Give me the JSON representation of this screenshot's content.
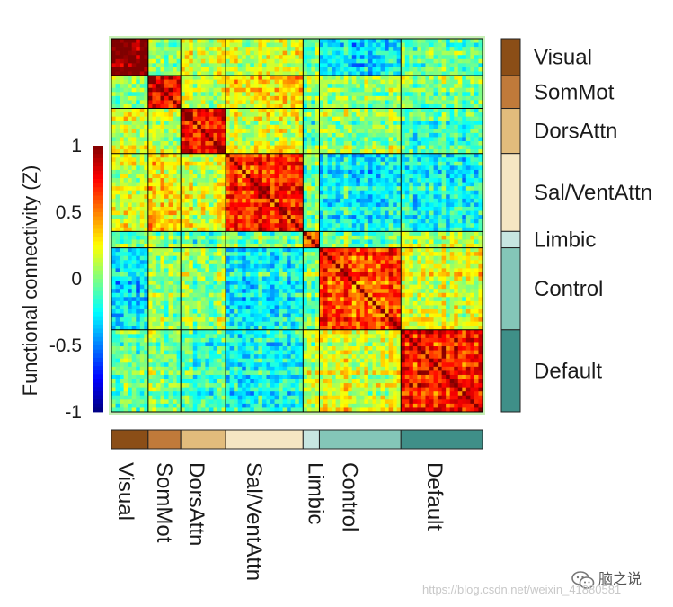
{
  "chart_data": {
    "type": "heatmap",
    "title": "",
    "colorbar": {
      "label": "Functional connectivity (Z)",
      "ticks": [
        {
          "value": 1,
          "label": "1"
        },
        {
          "value": 0.5,
          "label": "0.5"
        },
        {
          "value": 0,
          "label": "0"
        },
        {
          "value": -0.5,
          "label": "-0.5"
        },
        {
          "value": -1,
          "label": "-1"
        }
      ],
      "range": [
        -1,
        1
      ],
      "colormap": "jet"
    },
    "networks": [
      {
        "name": "Visual",
        "size": 9,
        "color": "#8b4e17"
      },
      {
        "name": "SomMot",
        "size": 8,
        "color": "#c07a3a"
      },
      {
        "name": "DorsAttn",
        "size": 11,
        "color": "#e2bc7c"
      },
      {
        "name": "Sal/VentAttn",
        "size": 19,
        "color": "#f5e6c3"
      },
      {
        "name": "Limbic",
        "size": 4,
        "color": "#c7e6e1"
      },
      {
        "name": "Control",
        "size": 20,
        "color": "#84c6b8"
      },
      {
        "name": "Default",
        "size": 20,
        "color": "#3f8f88"
      }
    ],
    "within_network_mean": [
      0.85,
      0.65,
      0.6,
      0.55,
      0.45,
      0.55,
      0.6
    ],
    "between_network_mean": [
      [
        0.85,
        0.02,
        0.12,
        0.12,
        -0.05,
        -0.3,
        -0.1
      ],
      [
        0.02,
        0.65,
        0.12,
        0.3,
        0.05,
        0.05,
        0.0
      ],
      [
        0.12,
        0.12,
        0.6,
        0.15,
        -0.05,
        0.05,
        -0.15
      ],
      [
        0.12,
        0.3,
        0.15,
        0.55,
        0.0,
        -0.25,
        -0.25
      ],
      [
        -0.05,
        0.05,
        -0.05,
        0.0,
        0.45,
        0.0,
        0.15
      ],
      [
        -0.3,
        0.05,
        0.05,
        -0.25,
        0.0,
        0.55,
        0.2
      ],
      [
        -0.1,
        0.0,
        -0.15,
        -0.25,
        0.15,
        0.2,
        0.6
      ]
    ]
  },
  "watermark": "https://blog.csdn.net/weixin_41880581",
  "wechat_account": "脑之说",
  "colors": {
    "grid_line": "#000000",
    "border_glow": "#c7f0b6"
  }
}
